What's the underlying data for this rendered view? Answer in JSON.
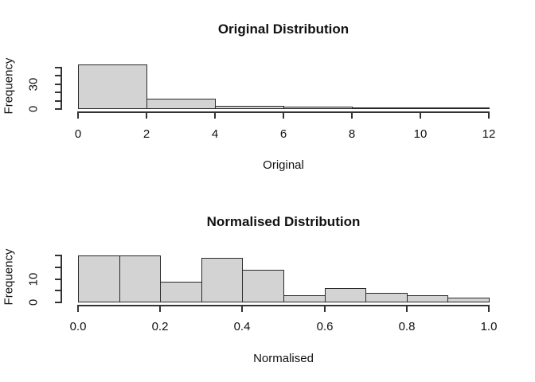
{
  "figure": {
    "background": "#ffffff",
    "bar_fill": "#d3d3d3",
    "bar_border": "#2a2a2a",
    "axis_color": "#333333",
    "text_color": "#111111"
  },
  "chart_data": [
    {
      "type": "bar",
      "kind": "histogram",
      "title": "Original Distribution",
      "xlabel": "Original",
      "ylabel": "Frequency",
      "breaks": [
        0,
        2,
        4,
        6,
        8,
        10,
        12
      ],
      "frequencies": [
        53,
        12,
        4,
        3,
        2,
        1
      ],
      "x_tick_values": [
        0,
        2,
        4,
        6,
        8,
        10,
        12
      ],
      "x_tick_labels": [
        "0",
        "2",
        "4",
        "6",
        "8",
        "10",
        "12"
      ],
      "y_tick_values": [
        0,
        10,
        20,
        30,
        40,
        50
      ],
      "y_labeled_ticks": [
        {
          "value": 0,
          "label": "0"
        },
        {
          "value": 30,
          "label": "30"
        }
      ],
      "xlim": [
        0,
        12
      ],
      "ylim": [
        0,
        53
      ],
      "grid": false,
      "legend": null
    },
    {
      "type": "bar",
      "kind": "histogram",
      "title": "Normalised Distribution",
      "xlabel": "Normalised",
      "ylabel": "Frequency",
      "breaks": [
        0,
        0.1,
        0.2,
        0.3,
        0.4,
        0.5,
        0.6,
        0.7,
        0.8,
        0.9,
        1.0
      ],
      "frequencies": [
        20,
        20,
        9,
        19,
        14,
        3,
        6,
        4,
        3,
        2
      ],
      "x_tick_values": [
        0,
        0.2,
        0.4,
        0.6,
        0.8,
        1.0
      ],
      "x_tick_labels": [
        "0.0",
        "0.2",
        "0.4",
        "0.6",
        "0.8",
        "1.0"
      ],
      "y_tick_values": [
        0,
        5,
        10,
        15,
        20
      ],
      "y_labeled_ticks": [
        {
          "value": 0,
          "label": "0"
        },
        {
          "value": 10,
          "label": "10"
        }
      ],
      "xlim": [
        0,
        1
      ],
      "ylim": [
        0,
        20
      ],
      "grid": false,
      "legend": null
    }
  ]
}
